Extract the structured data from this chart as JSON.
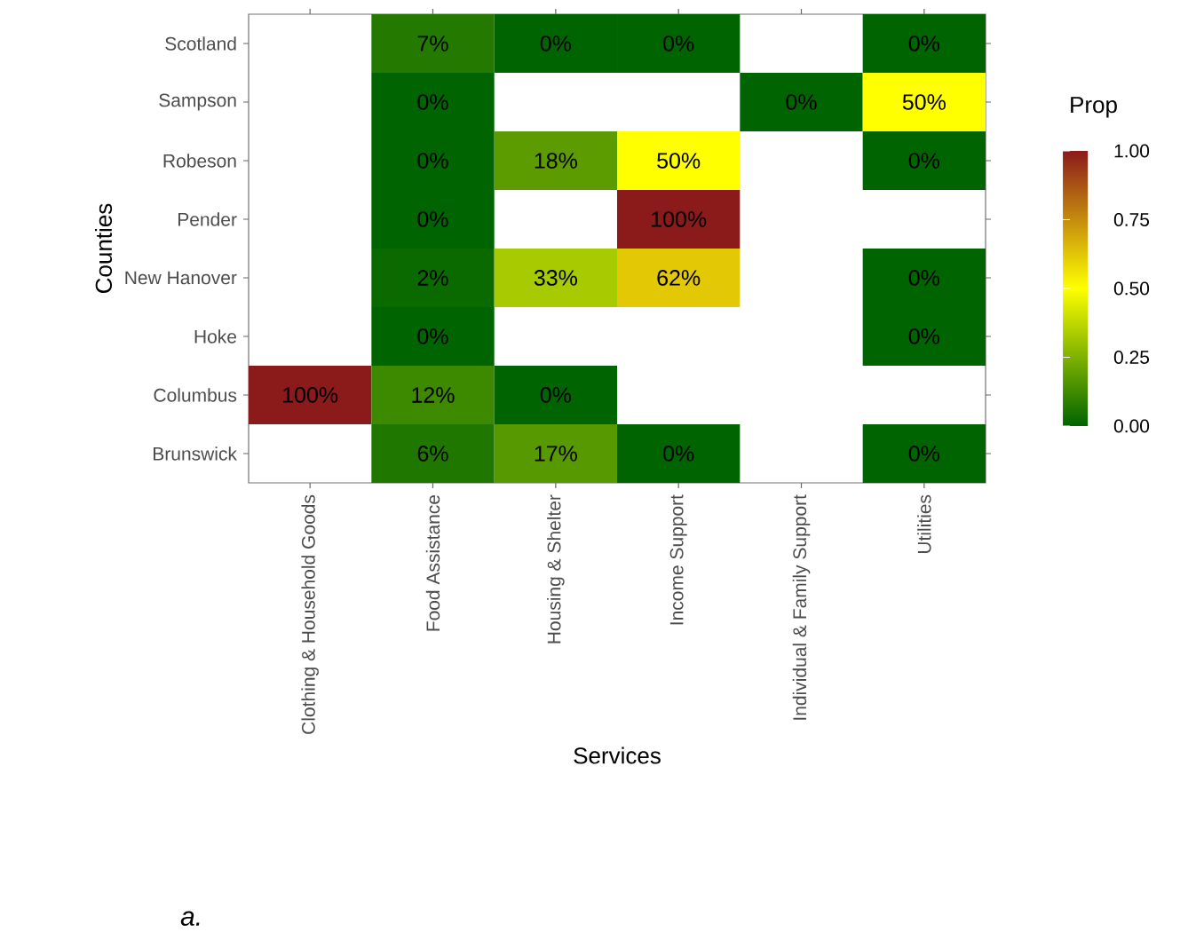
{
  "chart_data": {
    "type": "heatmap",
    "xlabel": "Services",
    "ylabel": "Counties",
    "clabel": "Prop",
    "categories": [
      "Clothing & Household Goods",
      "Food Assistance",
      "Housing & Shelter",
      "Income Support",
      "Individual & Family Support",
      "Utilities"
    ],
    "y_categories": [
      "Scotland",
      "Sampson",
      "Robeson",
      "Pender",
      "New Hanover",
      "Hoke",
      "Columbus",
      "Brunswick"
    ],
    "cells": [
      [
        null,
        0.07,
        0,
        0,
        null,
        0
      ],
      [
        null,
        0,
        null,
        null,
        0,
        0.5
      ],
      [
        null,
        0,
        0.18,
        0.5,
        null,
        0
      ],
      [
        null,
        0,
        null,
        1.0,
        null,
        null
      ],
      [
        null,
        0.02,
        0.33,
        0.62,
        null,
        0
      ],
      [
        null,
        0,
        null,
        null,
        null,
        0
      ],
      [
        1.0,
        0.12,
        0,
        null,
        null,
        null
      ],
      [
        null,
        0.06,
        0.17,
        0,
        null,
        0
      ]
    ],
    "cell_labels": [
      [
        null,
        "7%",
        "0%",
        "0%",
        null,
        "0%"
      ],
      [
        null,
        "0%",
        null,
        null,
        "0%",
        "50%"
      ],
      [
        null,
        "0%",
        "18%",
        "50%",
        null,
        "0%"
      ],
      [
        null,
        "0%",
        null,
        "100%",
        null,
        null
      ],
      [
        null,
        "2%",
        "33%",
        "62%",
        null,
        "0%"
      ],
      [
        null,
        "0%",
        null,
        null,
        null,
        "0%"
      ],
      [
        "100%",
        "12%",
        "0%",
        null,
        null,
        null
      ],
      [
        null,
        "6%",
        "17%",
        "0%",
        null,
        "0%"
      ]
    ],
    "clim": [
      0,
      1
    ],
    "cticks": [
      {
        "value": 0,
        "label": "0.00"
      },
      {
        "value": 0.25,
        "label": "0.25"
      },
      {
        "value": 0.5,
        "label": "0.50"
      },
      {
        "value": 0.75,
        "label": "0.75"
      },
      {
        "value": 1,
        "label": "1.00"
      }
    ],
    "annotations": [
      "a."
    ]
  }
}
